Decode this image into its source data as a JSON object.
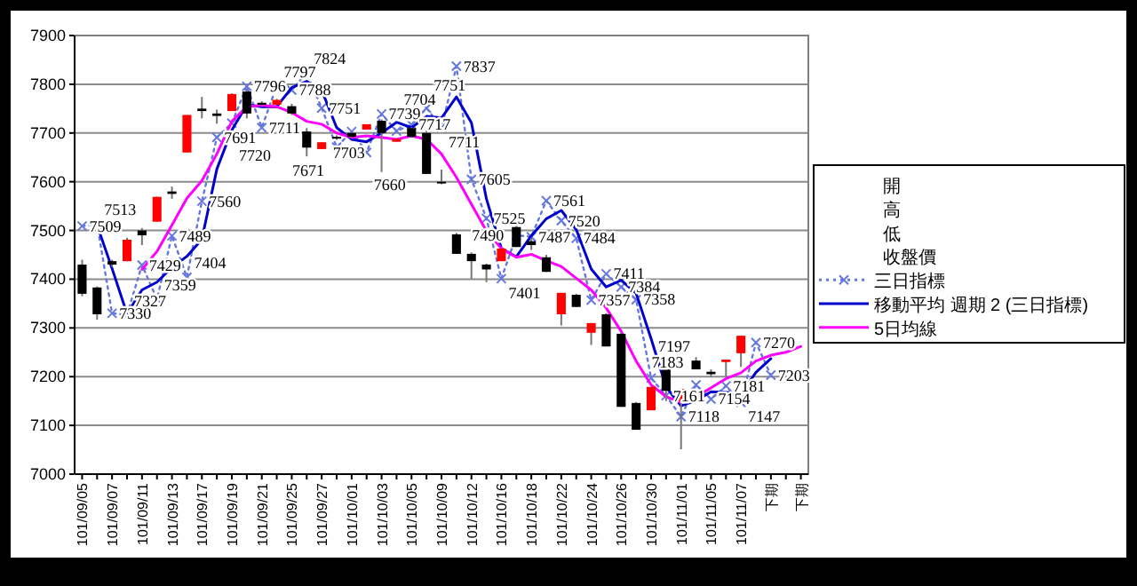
{
  "chart_data": {
    "type": "candlestick",
    "categories": [
      "101/09/05",
      null,
      "101/09/07",
      null,
      "101/09/11",
      null,
      "101/09/13",
      null,
      "101/09/17",
      null,
      "101/09/19",
      null,
      "101/09/21",
      null,
      "101/09/25",
      null,
      "101/09/27",
      null,
      "101/10/01",
      null,
      "101/10/03",
      null,
      "101/10/05",
      null,
      "101/10/09",
      null,
      "101/10/12",
      null,
      "101/10/16",
      null,
      "101/10/18",
      null,
      "101/10/22",
      null,
      "101/10/24",
      null,
      "101/10/26",
      null,
      "101/10/30",
      null,
      "101/11/01",
      null,
      "101/11/05",
      null,
      "101/11/07",
      null,
      "下期",
      null,
      "下期"
    ],
    "ylim": [
      7000,
      7900
    ],
    "yticks": [
      7000,
      7100,
      7200,
      7300,
      7400,
      7500,
      7600,
      7700,
      7800,
      7900
    ],
    "grid": "y",
    "legend": "right",
    "annotations": [
      "開",
      "高",
      "低",
      "收盤價"
    ],
    "ohlc": [
      [
        7430,
        7440,
        7365,
        7370
      ],
      [
        7383,
        7385,
        7317,
        7328
      ],
      [
        7437,
        7440,
        7425,
        7430
      ],
      [
        7437,
        7485,
        7437,
        7481
      ],
      [
        7500,
        7505,
        7470,
        7490
      ],
      [
        7518,
        7569,
        7518,
        7569
      ],
      [
        7580,
        7590,
        7565,
        7575
      ],
      [
        7660,
        7737,
        7660,
        7737
      ],
      [
        7750,
        7774,
        7730,
        7745
      ],
      [
        7740,
        7748,
        7719,
        7735
      ],
      [
        7745,
        7781,
        7745,
        7780
      ],
      [
        7785,
        7790,
        7730,
        7740
      ],
      [
        7762,
        7765,
        7755,
        7758
      ],
      [
        7758,
        7770,
        7758,
        7768
      ],
      [
        7755,
        7760,
        7737,
        7740
      ],
      [
        7703,
        7710,
        7652,
        7670
      ],
      [
        7667,
        7681,
        7667,
        7681
      ],
      [
        7692,
        7695,
        7686,
        7689
      ],
      [
        7700,
        7702,
        7690,
        7692
      ],
      [
        7707,
        7718,
        7707,
        7718
      ],
      [
        7725,
        7728,
        7620,
        7700
      ],
      [
        7682,
        7688,
        7682,
        7688
      ],
      [
        7710,
        7712,
        7690,
        7692
      ],
      [
        7700,
        7705,
        7616,
        7616
      ],
      [
        7600,
        7625,
        7595,
        7597
      ],
      [
        7492,
        7495,
        7452,
        7452
      ],
      [
        7452,
        7455,
        7401,
        7437
      ],
      [
        7430,
        7432,
        7394,
        7420
      ],
      [
        7437,
        7463,
        7437,
        7463
      ],
      [
        7507,
        7510,
        7466,
        7466
      ],
      [
        7478,
        7485,
        7460,
        7470
      ],
      [
        7445,
        7450,
        7415,
        7415
      ],
      [
        7328,
        7372,
        7305,
        7372
      ],
      [
        7368,
        7370,
        7343,
        7343
      ],
      [
        7290,
        7310,
        7265,
        7310
      ],
      [
        7328,
        7330,
        7262,
        7262
      ],
      [
        7288,
        7290,
        7138,
        7138
      ],
      [
        7146,
        7148,
        7091,
        7091
      ],
      [
        7131,
        7179,
        7131,
        7179
      ],
      [
        7215,
        7218,
        7150,
        7171
      ],
      [
        7150,
        7175,
        7051,
        7175
      ],
      [
        7233,
        7240,
        7215,
        7215
      ],
      [
        7210,
        7215,
        7200,
        7205
      ],
      [
        7230,
        7235,
        7200,
        7235
      ],
      [
        7248,
        7284,
        7220,
        7284
      ],
      null,
      null,
      null,
      null
    ],
    "colors": [
      "#000000",
      "#000000",
      "#000000",
      "#ff0000",
      "#000000",
      "#ff0000",
      "#000000",
      "#ff0000",
      "#000000",
      "#000000",
      "#ff0000",
      "#000000",
      "#000000",
      "#ff0000",
      "#000000",
      "#000000",
      "#ff0000",
      "#000000",
      "#000000",
      "#ff0000",
      "#000000",
      "#ff0000",
      "#000000",
      "#000000",
      "#000000",
      "#000000",
      "#000000",
      "#000000",
      "#ff0000",
      "#000000",
      "#000000",
      "#000000",
      "#ff0000",
      "#000000",
      "#ff0000",
      "#000000",
      "#000000",
      "#000000",
      "#ff0000",
      "#000000",
      "#ff0000",
      "#000000",
      "#000000",
      "#ff0000",
      "#ff0000",
      null,
      null,
      null,
      null
    ],
    "series": [
      {
        "name": "三日指標",
        "type": "line",
        "color": "#6677dd",
        "line_style": "dotted",
        "marker": "cross",
        "data_labels": true,
        "values": [
          7509,
          7513,
          7330,
          7327,
          7429,
          7359,
          7489,
          7404,
          7560,
          7691,
          7720,
          7796,
          7711,
          7797,
          7788,
          7824,
          7751,
          7671,
          7703,
          7660,
          7739,
          7704,
          7717,
          7751,
          7711,
          7837,
          7605,
          7525,
          7401,
          7490,
          7487,
          7561,
          7520,
          7484,
          7357,
          7411,
          7384,
          7358,
          7197,
          7161,
          7118,
          7183,
          7154,
          7181,
          7147,
          7270,
          7203,
          null,
          null
        ]
      },
      {
        "name": "移動平均 週期 2 (三日指標)",
        "type": "line",
        "color": "#0000cc",
        "line_style": "solid",
        "values": [
          null,
          7511,
          7422,
          7329,
          7378,
          7394,
          7424,
          7447,
          7482,
          7626,
          7706,
          7758,
          7754,
          7754,
          7793,
          7806,
          7788,
          7711,
          7687,
          7682,
          7700,
          7722,
          7711,
          7734,
          7731,
          7774,
          7721,
          7565,
          7463,
          7446,
          7489,
          7524,
          7541,
          7502,
          7421,
          7384,
          7398,
          7371,
          7278,
          7179,
          7140,
          7151,
          7169,
          7168,
          7164,
          7209,
          7237,
          null,
          null
        ]
      },
      {
        "name": "5日均線",
        "type": "line",
        "color": "#ff00ff",
        "line_style": "solid",
        "values": [
          null,
          null,
          null,
          null,
          7420,
          7457,
          7511,
          7566,
          7602,
          7657,
          7724,
          7754,
          7757,
          7754,
          7742,
          7724,
          7718,
          7700,
          7691,
          7694,
          7691,
          7687,
          7694,
          7687,
          7657,
          7609,
          7554,
          7499,
          7463,
          7445,
          7451,
          7438,
          7426,
          7402,
          7378,
          7341,
          7293,
          7232,
          7183,
          7159,
          7147,
          7159,
          7177,
          7196,
          7208,
          7232,
          7244,
          7250,
          7262
        ]
      }
    ]
  }
}
